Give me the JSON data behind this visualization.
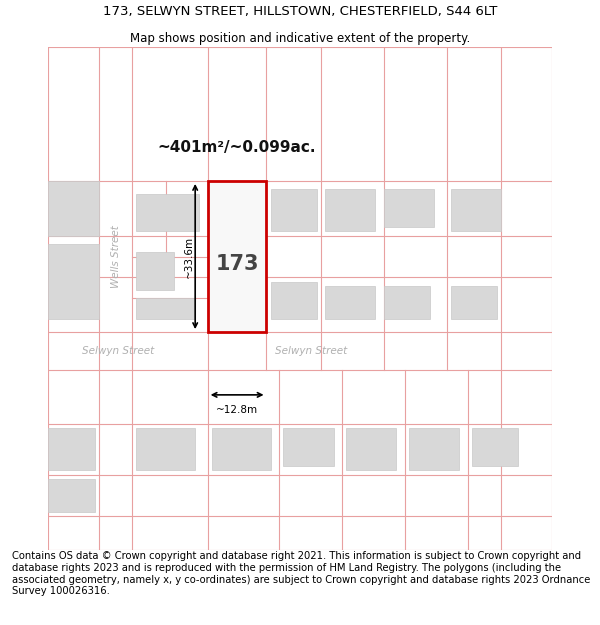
{
  "title": "173, SELWYN STREET, HILLSTOWN, CHESTERFIELD, S44 6LT",
  "subtitle": "Map shows position and indicative extent of the property.",
  "footer": "Contains OS data © Crown copyright and database right 2021. This information is subject to Crown copyright and database rights 2023 and is reproduced with the permission of HM Land Registry. The polygons (including the associated geometry, namely x, y co-ordinates) are subject to Crown copyright and database rights 2023 Ordnance Survey 100026316.",
  "area_label": "~401m²/~0.099ac.",
  "number_label": "173",
  "width_label": "~12.8m",
  "height_label": "~33.6m",
  "bg_color": "#ffffff",
  "map_bg": "#f2f2f2",
  "plot_fill": "#f8f8f8",
  "plot_outline": "#cc0000",
  "building_fill": "#d8d8d8",
  "building_outline": "#c8c8c8",
  "road_fill": "#ffffff",
  "boundary_color": "#e8a0a0",
  "street_label_color": "#b0b0b0",
  "dim_color": "#000000",
  "title_fontsize": 9.5,
  "subtitle_fontsize": 8.5,
  "footer_fontsize": 7.2
}
